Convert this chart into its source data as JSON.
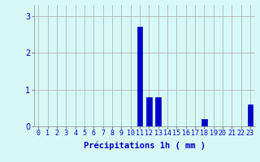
{
  "hours": [
    0,
    1,
    2,
    3,
    4,
    5,
    6,
    7,
    8,
    9,
    10,
    11,
    12,
    13,
    14,
    15,
    16,
    17,
    18,
    19,
    20,
    21,
    22,
    23
  ],
  "values": [
    0,
    0,
    0,
    0,
    0,
    0,
    0,
    0,
    0,
    0,
    0,
    2.7,
    0.8,
    0.8,
    0,
    0,
    0,
    0,
    0.2,
    0,
    0,
    0,
    0,
    0.6
  ],
  "bar_color": "#0000cc",
  "bar_edge_color": "#0000aa",
  "background_color": "#d8f8f8",
  "grid_color": "#aaaaaa",
  "xlabel": "Précipitations 1h ( mm )",
  "xlabel_color": "#0000cc",
  "xlabel_fontsize": 7.5,
  "tick_color": "#0000cc",
  "tick_fontsize": 6,
  "yticks": [
    0,
    1,
    2,
    3
  ],
  "ylim": [
    0,
    3.3
  ],
  "xlim": [
    -0.5,
    23.5
  ]
}
